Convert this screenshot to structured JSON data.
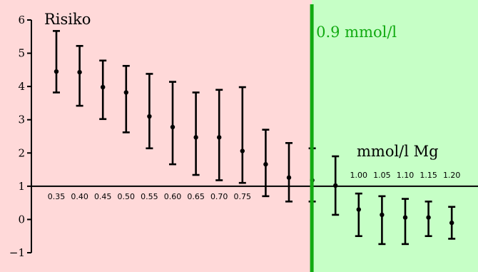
{
  "chart_data": {
    "type": "scatter",
    "title": "Risiko",
    "xlabel": "mmol/l Mg",
    "ylabel": "",
    "ylim": [
      -1,
      6
    ],
    "yticks": [
      "−1",
      "0",
      "1",
      "2",
      "3",
      "4",
      "5",
      "6"
    ],
    "baseline": 1,
    "grid": false,
    "threshold": {
      "value": 0.9,
      "label": "0.9 mmol/l",
      "color": "#11aa11"
    },
    "colors": {
      "low_region": "#ffd9d9",
      "high_region": "#c6ffc6"
    },
    "categories": [
      "0.35",
      "0.40",
      "0.45",
      "0.50",
      "0.55",
      "0.60",
      "0.65",
      "0.70",
      "0.75",
      "0.80",
      "0.85",
      "0.90",
      "0.95",
      "1.00",
      "1.05",
      "1.10",
      "1.15",
      "1.20"
    ],
    "visible_category_labels": [
      "0.35",
      "0.40",
      "0.45",
      "0.50",
      "0.55",
      "0.60",
      "0.65",
      "0.70",
      "0.75",
      "1.00",
      "1.05",
      "1.10",
      "1.15",
      "1.20"
    ],
    "series": [
      {
        "points": [
          {
            "x": 0.35,
            "y": 4.45,
            "low": 3.82,
            "high": 5.67
          },
          {
            "x": 0.4,
            "y": 4.43,
            "low": 3.42,
            "high": 5.22
          },
          {
            "x": 0.45,
            "y": 3.98,
            "low": 3.02,
            "high": 4.78
          },
          {
            "x": 0.5,
            "y": 3.82,
            "low": 2.62,
            "high": 4.62
          },
          {
            "x": 0.55,
            "y": 3.1,
            "low": 2.14,
            "high": 4.38
          },
          {
            "x": 0.6,
            "y": 2.78,
            "low": 1.66,
            "high": 4.14
          },
          {
            "x": 0.65,
            "y": 2.47,
            "low": 1.34,
            "high": 3.82
          },
          {
            "x": 0.7,
            "y": 2.47,
            "low": 1.18,
            "high": 3.9
          },
          {
            "x": 0.75,
            "y": 2.06,
            "low": 1.1,
            "high": 3.98
          },
          {
            "x": 0.8,
            "y": 1.66,
            "low": 0.7,
            "high": 2.7
          },
          {
            "x": 0.85,
            "y": 1.26,
            "low": 0.54,
            "high": 2.3
          },
          {
            "x": 0.9,
            "y": 1.18,
            "low": 0.54,
            "high": 2.14
          },
          {
            "x": 0.95,
            "y": 1.02,
            "low": 0.14,
            "high": 1.9
          },
          {
            "x": 1.0,
            "y": 0.3,
            "low": -0.5,
            "high": 0.78
          },
          {
            "x": 1.05,
            "y": 0.14,
            "low": -0.74,
            "high": 0.7
          },
          {
            "x": 1.1,
            "y": 0.06,
            "low": -0.74,
            "high": 0.62
          },
          {
            "x": 1.15,
            "y": 0.06,
            "low": -0.5,
            "high": 0.54
          },
          {
            "x": 1.2,
            "y": -0.1,
            "low": -0.58,
            "high": 0.38
          }
        ]
      }
    ]
  }
}
